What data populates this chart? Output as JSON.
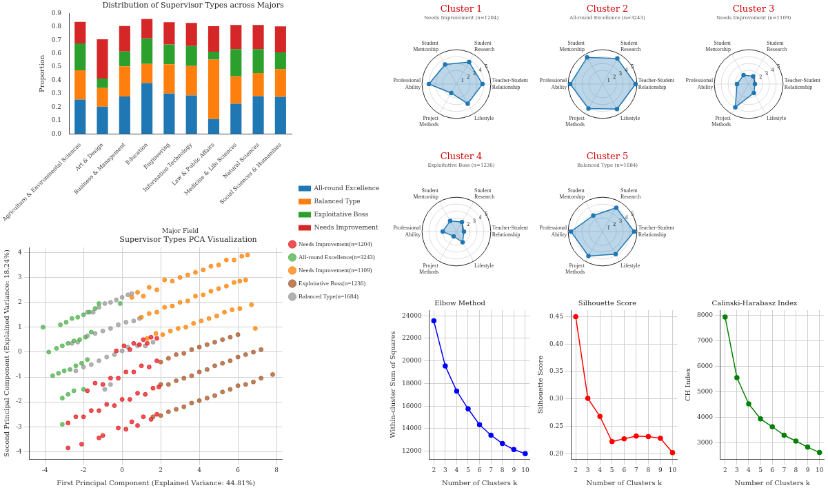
{
  "chart_data": [
    {
      "type": "bar",
      "title": "Distribution of Supervisor Types across Majors",
      "xlabel": "Major Field",
      "ylabel": "Proportion",
      "categories": [
        "Agriculture & Environmental Sciences",
        "Art & Design",
        "Business & Management",
        "Education",
        "Engineering",
        "Information Technology",
        "Law & Public Affairs",
        "Medicine & Life Sciences",
        "Natural Sciences",
        "Social Sciences & Humanities"
      ],
      "series": [
        {
          "name": "All-round Excellence",
          "color": "#1f77b4",
          "values": [
            0.257,
            0.205,
            0.28,
            0.38,
            0.302,
            0.288,
            0.112,
            0.226,
            0.282,
            0.277
          ]
        },
        {
          "name": "Balanced Type",
          "color": "#ff7f0e",
          "values": [
            0.218,
            0.138,
            0.225,
            0.142,
            0.218,
            0.219,
            0.443,
            0.204,
            0.173,
            0.207
          ]
        },
        {
          "name": "Exploitative Boss",
          "color": "#2ca02c",
          "values": [
            0.2,
            0.07,
            0.11,
            0.191,
            0.148,
            0.149,
            0.058,
            0.203,
            0.178,
            0.124
          ]
        },
        {
          "name": "Needs Improvement",
          "color": "#d62728",
          "values": [
            0.161,
            0.293,
            0.19,
            0.144,
            0.165,
            0.172,
            0.19,
            0.18,
            0.18,
            0.194
          ]
        }
      ],
      "stacked": true,
      "ylim": [
        0,
        0.9
      ],
      "yticks": [
        {
          "value": 0,
          "label": "0.0"
        },
        0.1,
        0.2,
        0.3,
        0.4,
        0.5,
        0.6,
        0.7,
        0.8,
        0.9
      ],
      "legend": "bottom right"
    },
    {
      "type": "radar",
      "title": "Cluster 1",
      "subtitle": "Needs Improvement (n=1204)",
      "categories": [
        "Student Research",
        "Teacher-Student Relationship",
        "Lifestyle",
        "Project Methods",
        "Professional Ability",
        "Student Mentorship"
      ],
      "series": [
        {
          "color": "#1f77b4",
          "values": [
            3.7,
            3.8,
            3.3,
            1.5,
            4.0,
            3.3
          ]
        }
      ],
      "ylim": [
        0,
        5
      ],
      "yticks": [
        1,
        2,
        3,
        4,
        5
      ],
      "marker": "circle"
    },
    {
      "type": "radar",
      "title": "Cluster 2",
      "subtitle": "All-round Excellence (n=3243)",
      "categories": [
        "Student Research",
        "Teacher-Student Relationship",
        "Lifestyle",
        "Project Methods",
        "Professional Ability",
        "Student Mentorship"
      ],
      "series": [
        {
          "color": "#1f77b4",
          "values": [
            4.3,
            4.8,
            4.2,
            4.1,
            4.7,
            4.5
          ]
        }
      ],
      "ylim": [
        0,
        5
      ],
      "yticks": [
        1,
        2,
        3,
        4,
        5
      ],
      "marker": "circle"
    },
    {
      "type": "radar",
      "title": "Cluster 3",
      "subtitle": "Needs Improvement (n=1109)",
      "categories": [
        "Student Research",
        "Teacher-Student Relationship",
        "Lifestyle",
        "Project Methods",
        "Professional Ability",
        "Student Mentorship"
      ],
      "series": [
        {
          "color": "#1f77b4",
          "values": [
            1.3,
            0.9,
            1.5,
            3.9,
            1.7,
            1.5
          ]
        }
      ],
      "ylim": [
        0,
        5
      ],
      "yticks": [
        1,
        2,
        3,
        4,
        5
      ],
      "marker": "circle"
    },
    {
      "type": "radar",
      "title": "Cluster 4",
      "subtitle": "Exploitative Boss (n=1236)",
      "categories": [
        "Student Research",
        "Teacher-Student Relationship",
        "Lifestyle",
        "Project Methods",
        "Professional Ability",
        "Student Mentorship"
      ],
      "series": [
        {
          "color": "#1f77b4",
          "values": [
            1.6,
            1.1,
            1.8,
            0.8,
            2.0,
            1.8
          ]
        }
      ],
      "ylim": [
        0,
        5
      ],
      "yticks": [
        1,
        2,
        3,
        4,
        5
      ],
      "marker": "circle"
    },
    {
      "type": "radar",
      "title": "Cluster 5",
      "subtitle": "Balanced Type (n=1684)",
      "categories": [
        "Student Research",
        "Teacher-Student Relationship",
        "Lifestyle",
        "Project Methods",
        "Professional Ability",
        "Student Mentorship"
      ],
      "series": [
        {
          "color": "#1f77b4",
          "values": [
            4.0,
            4.6,
            3.8,
            4.1,
            4.6,
            2.7
          ]
        }
      ],
      "ylim": [
        0,
        5
      ],
      "yticks": [
        1,
        2,
        3,
        4,
        5
      ],
      "marker": "circle"
    },
    {
      "type": "scatter",
      "title": "Supervisor Types PCA Visualization",
      "xlabel": "First Principal Component (Explained Variance: 44.81%)",
      "ylabel": "Second Principal Component (Explained Variance: 18.24%)",
      "series": [
        {
          "name": "Needs Improvement(n=1204)",
          "color": "#e41a1c",
          "x": [
            -0.3,
            0.1,
            0.4,
            0.6,
            0.9,
            1.1,
            1.3,
            1.5,
            1.8,
            -1.8,
            -1.4,
            -1.0,
            -0.6,
            -0.2,
            0.2,
            0.6,
            1.0,
            1.4,
            1.8,
            -2.8,
            -2.4,
            -2.0,
            -1.6,
            -1.2,
            -0.8,
            -0.4,
            0.0,
            0.4,
            0.8,
            1.2,
            1.6,
            1.9,
            -2.8,
            -2.1,
            -1.2,
            -1.0,
            -0.2,
            0.2,
            0.5,
            0.8,
            1.1,
            1.5,
            1.8
          ],
          "values": [
            0.05,
            0.25,
            0.1,
            0.35,
            0.3,
            0.5,
            0.35,
            0.6,
            0.55,
            -1.55,
            -1.25,
            -1.3,
            -1.05,
            -1.05,
            -0.8,
            -0.8,
            -0.55,
            -0.6,
            -0.35,
            -2.85,
            -2.6,
            -2.6,
            -2.35,
            -2.35,
            -2.1,
            -2.15,
            -1.9,
            -1.9,
            -1.65,
            -1.7,
            -1.45,
            -1.4,
            -3.85,
            -3.7,
            -3.45,
            -3.35,
            -3.05,
            -3.1,
            -2.8,
            -2.95,
            -2.6,
            -2.7,
            -2.5
          ]
        },
        {
          "name": "All-round Excellence(n=3243)",
          "color": "#4daf4a",
          "x": [
            -4.1,
            -3.2,
            -2.9,
            -2.6,
            -2.3,
            -2.0,
            -1.7,
            -1.4,
            -1.2,
            -0.1,
            -3.8,
            -3.4,
            -3.1,
            -2.8,
            -2.5,
            -2.2,
            -1.9,
            -1.6,
            -3.6,
            -3.3,
            -3.0,
            -2.7,
            -2.4,
            -2.1,
            -1.8,
            -3.1,
            -2.8,
            -2.5,
            -2.0,
            -3.1
          ],
          "values": [
            1.0,
            1.1,
            1.2,
            1.35,
            1.4,
            1.5,
            1.6,
            1.75,
            1.95,
            1.95,
            0.0,
            0.15,
            0.25,
            0.35,
            0.45,
            0.5,
            0.6,
            0.8,
            -0.95,
            -0.85,
            -0.75,
            -0.7,
            -0.55,
            -0.45,
            -0.3,
            -1.85,
            -1.7,
            -1.55,
            -1.5,
            -2.9
          ]
        },
        {
          "name": "Needs Improvement(n=1109)",
          "color": "#ff7f00",
          "x": [
            0.5,
            0.8,
            1.1,
            1.4,
            1.8,
            2.2,
            2.6,
            3.0,
            3.4,
            3.8,
            4.2,
            4.6,
            5.0,
            5.4,
            5.8,
            6.2,
            6.5,
            1.0,
            1.4,
            1.8,
            2.2,
            2.6,
            3.0,
            3.4,
            3.8,
            4.2,
            4.6,
            5.0,
            5.4,
            5.8,
            6.1,
            6.4,
            1.3,
            1.75,
            2.1,
            2.5,
            2.9,
            3.3,
            3.7,
            4.1,
            4.5,
            4.9,
            5.3,
            5.7,
            6.1,
            6.7,
            6.9
          ],
          "values": [
            2.2,
            2.4,
            2.25,
            2.6,
            2.5,
            2.9,
            2.85,
            3.0,
            3.1,
            3.2,
            3.3,
            3.45,
            3.5,
            3.7,
            3.7,
            3.85,
            3.9,
            1.4,
            1.55,
            1.6,
            1.8,
            1.85,
            2.0,
            2.05,
            2.25,
            2.3,
            2.45,
            2.55,
            2.65,
            2.8,
            2.85,
            2.9,
            0.55,
            0.75,
            0.7,
            0.85,
            0.95,
            1.0,
            1.15,
            1.25,
            1.35,
            1.45,
            1.6,
            1.7,
            1.75,
            1.9,
            0.95
          ]
        },
        {
          "name": "Exploitative Boss(n=1236)",
          "color": "#a65628",
          "x": [
            2.0,
            2.4,
            2.8,
            3.2,
            3.6,
            4.0,
            4.4,
            4.8,
            5.2,
            5.6,
            6.0,
            2.0,
            2.4,
            2.8,
            3.2,
            3.6,
            4.0,
            4.4,
            4.8,
            5.2,
            5.6,
            6.0,
            6.4,
            6.8,
            7.2,
            1.6,
            2.0,
            2.4,
            2.8,
            3.2,
            3.6,
            4.0,
            4.4,
            4.8,
            5.2,
            5.6,
            6.0,
            6.4,
            6.8,
            7.2,
            7.8
          ],
          "values": [
            -0.4,
            -0.25,
            -0.1,
            -0.05,
            0.1,
            0.2,
            0.3,
            0.4,
            0.5,
            0.6,
            0.7,
            -1.3,
            -1.3,
            -1.15,
            -1.05,
            -0.95,
            -0.8,
            -0.7,
            -0.55,
            -0.45,
            -0.35,
            -0.2,
            -0.1,
            0.0,
            0.1,
            -2.6,
            -2.55,
            -2.4,
            -2.3,
            -2.2,
            -2.05,
            -1.95,
            -1.85,
            -1.75,
            -1.6,
            -1.5,
            -1.35,
            -1.3,
            -1.2,
            -1.05,
            -0.9
          ]
        },
        {
          "name": "Balanced Type(n=1684)",
          "color": "#999999",
          "x": [
            -1.8,
            -1.5,
            -1.2,
            -0.9,
            -0.6,
            -0.3,
            0.0,
            0.3,
            0.5,
            -2.6,
            -2.3,
            -1.8,
            -1.4,
            -1.0,
            -0.6,
            -0.2,
            0.2,
            0.6,
            0.9,
            -2.4,
            -2.0,
            -1.6,
            -1.2,
            -0.8,
            -0.4,
            0.0,
            0.3,
            0.8,
            1.2,
            1.6,
            -0.9,
            -0.6
          ],
          "values": [
            1.6,
            1.6,
            1.8,
            1.95,
            2.0,
            2.1,
            2.2,
            2.3,
            2.35,
            0.35,
            0.4,
            0.65,
            0.75,
            0.85,
            0.95,
            1.1,
            1.2,
            1.25,
            1.35,
            -0.75,
            -0.6,
            -0.5,
            -0.35,
            -0.2,
            -0.1,
            0.05,
            0.2,
            0.25,
            0.25,
            0.4,
            -1.5,
            -1.3
          ]
        }
      ],
      "xlim": [
        -4.8,
        8.3
      ],
      "xticks": [
        -4,
        -2,
        0,
        2,
        4,
        6,
        8
      ],
      "ylim": [
        -4.3,
        4.2
      ],
      "yticks": [
        -4,
        -3,
        -2,
        -1,
        0,
        1,
        2,
        3,
        4
      ],
      "grid": true,
      "legend": "top right",
      "marker": "circle"
    },
    {
      "type": "line",
      "title": "Elbow Method",
      "xlabel": "Number of Clusters k",
      "ylabel": "Within-cluster Sum of Squares",
      "x": [
        2,
        3,
        4,
        5,
        6,
        7,
        8,
        9,
        10
      ],
      "values": [
        23550,
        19550,
        17330,
        15750,
        14350,
        13420,
        12680,
        12150,
        11780
      ],
      "color": "#0000ff",
      "xlim": [
        1.6,
        10.4
      ],
      "xticks": [
        2,
        3,
        4,
        5,
        6,
        7,
        8,
        9,
        10
      ],
      "ylim": [
        11300,
        24500
      ],
      "yticks": [
        12000,
        14000,
        16000,
        18000,
        20000,
        22000,
        24000
      ],
      "grid": true,
      "marker": "circle",
      "line_style": "solid"
    },
    {
      "type": "line",
      "title": "Silhouette Score",
      "xlabel": "Number of Clusters k",
      "ylabel": "Silhouette Score",
      "x": [
        2,
        3,
        4,
        5,
        6,
        7,
        8,
        9,
        10
      ],
      "values": [
        0.45,
        0.301,
        0.268,
        0.222,
        0.227,
        0.232,
        0.231,
        0.228,
        0.202
      ],
      "color": "#ff0000",
      "xlim": [
        1.6,
        10.4
      ],
      "xticks": [
        2,
        3,
        4,
        5,
        6,
        7,
        8,
        9,
        10
      ],
      "ylim": [
        0.19,
        0.462
      ],
      "yticks": [
        {
          "value": 0.2,
          "label": "0.20"
        },
        0.25,
        {
          "value": 0.3,
          "label": "0.30"
        },
        0.35,
        {
          "value": 0.4,
          "label": "0.40"
        },
        0.45
      ],
      "grid": true,
      "marker": "circle",
      "line_style": "solid"
    },
    {
      "type": "line",
      "title": "Calinski-Harabasz Index",
      "xlabel": "Number of Clusters k",
      "ylabel": "CH Index",
      "x": [
        2,
        3,
        4,
        5,
        6,
        7,
        8,
        9,
        10
      ],
      "values": [
        7930,
        5550,
        4520,
        3930,
        3620,
        3290,
        3060,
        2820,
        2610
      ],
      "color": "#008000",
      "xlim": [
        1.6,
        10.4
      ],
      "xticks": [
        2,
        3,
        4,
        5,
        6,
        7,
        8,
        9,
        10
      ],
      "ylim": [
        2350,
        8200
      ],
      "yticks": [
        3000,
        4000,
        5000,
        6000,
        7000,
        8000
      ],
      "grid": true,
      "marker": "circle",
      "line_style": "solid"
    }
  ]
}
